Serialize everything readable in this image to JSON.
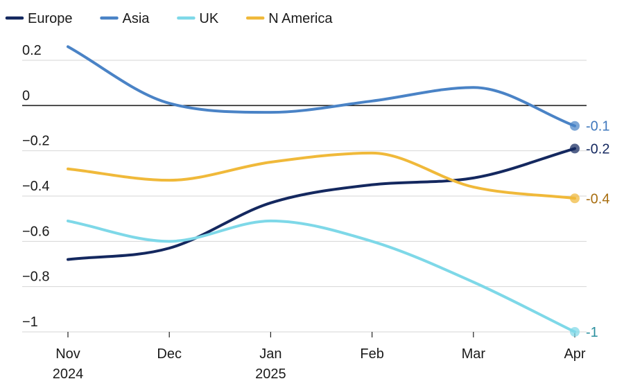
{
  "chart_data": {
    "type": "line",
    "title": "",
    "xlabel": "",
    "ylabel": "",
    "ylim": [
      -1,
      0.2
    ],
    "x_ticks": [
      {
        "line1": "Nov",
        "line2": "2024"
      },
      {
        "line1": "Dec",
        "line2": ""
      },
      {
        "line1": "Jan",
        "line2": "2025"
      },
      {
        "line1": "Feb",
        "line2": ""
      },
      {
        "line1": "Mar",
        "line2": ""
      },
      {
        "line1": "Apr",
        "line2": ""
      }
    ],
    "x_positions": [
      0,
      1,
      2,
      3,
      4,
      5
    ],
    "y_ticks": [
      {
        "value": 0.2,
        "label": "0.2"
      },
      {
        "value": 0,
        "label": "0"
      },
      {
        "value": -0.2,
        "label": "−0.2"
      },
      {
        "value": -0.4,
        "label": "−0.4"
      },
      {
        "value": -0.6,
        "label": "−0.6"
      },
      {
        "value": -0.8,
        "label": "−0.8"
      },
      {
        "value": -1,
        "label": "−1"
      }
    ],
    "series": [
      {
        "name": "Europe",
        "color": "#14285f",
        "end_label": "-0.2",
        "label_color": "#14285f",
        "points": [
          [
            0,
            -0.68
          ],
          [
            1,
            -0.63
          ],
          [
            2,
            -0.43
          ],
          [
            3,
            -0.35
          ],
          [
            4,
            -0.32
          ],
          [
            5,
            -0.19
          ]
        ]
      },
      {
        "name": "Asia",
        "color": "#4a83c6",
        "end_label": "-0.1",
        "label_color": "#3f78bd",
        "points": [
          [
            0,
            0.26
          ],
          [
            1,
            0.01
          ],
          [
            2,
            -0.03
          ],
          [
            3,
            0.02
          ],
          [
            4,
            0.08
          ],
          [
            5,
            -0.09
          ]
        ]
      },
      {
        "name": "UK",
        "color": "#7ed8e8",
        "end_label": "-1",
        "label_color": "#2a8f9e",
        "points": [
          [
            0,
            -0.51
          ],
          [
            1,
            -0.6
          ],
          [
            2,
            -0.51
          ],
          [
            3,
            -0.6
          ],
          [
            4,
            -0.78
          ],
          [
            5,
            -1.0
          ]
        ]
      },
      {
        "name": "N America",
        "color": "#f0b93a",
        "end_label": "-0.4",
        "label_color": "#a86e10",
        "points": [
          [
            0,
            -0.28
          ],
          [
            1,
            -0.33
          ],
          [
            2,
            -0.25
          ],
          [
            3,
            -0.21
          ],
          [
            4,
            -0.36
          ],
          [
            5,
            -0.41
          ]
        ]
      }
    ]
  }
}
